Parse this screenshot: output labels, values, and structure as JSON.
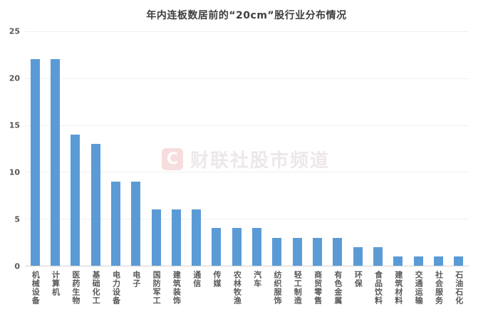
{
  "chart_data": {
    "type": "bar",
    "title": "年内连板数居前的“20cm”股行业分布情况",
    "categories": [
      "机械设备",
      "计算机",
      "医药生物",
      "基础化工",
      "电力设备",
      "电子",
      "国防军工",
      "建筑装饰",
      "通信",
      "传媒",
      "农林牧渔",
      "汽车",
      "纺织服饰",
      "轻工制造",
      "商贸零售",
      "有色金属",
      "环保",
      "食品饮料",
      "建筑材料",
      "交通运输",
      "社会服务",
      "石油石化"
    ],
    "values": [
      22,
      22,
      14,
      13,
      9,
      9,
      6,
      6,
      6,
      4,
      4,
      4,
      3,
      3,
      3,
      3,
      2,
      2,
      1,
      1,
      1,
      1
    ],
    "xlabel": "",
    "ylabel": "",
    "ylim": [
      0,
      25
    ],
    "yticks": [
      0,
      5,
      10,
      15,
      20,
      25
    ],
    "grid": true,
    "legend": false,
    "bar_color": "#5B9BD5"
  },
  "watermark": {
    "logo_letter": "C",
    "text": "财联社股市频道"
  },
  "colors": {
    "bar": "#5B9BD5",
    "title_text": "#3F3F3F",
    "tick_label": "#595959",
    "gridline": "#F0F0F0",
    "axis_line": "#D2D2D2",
    "watermark_pink": "#E17878"
  }
}
